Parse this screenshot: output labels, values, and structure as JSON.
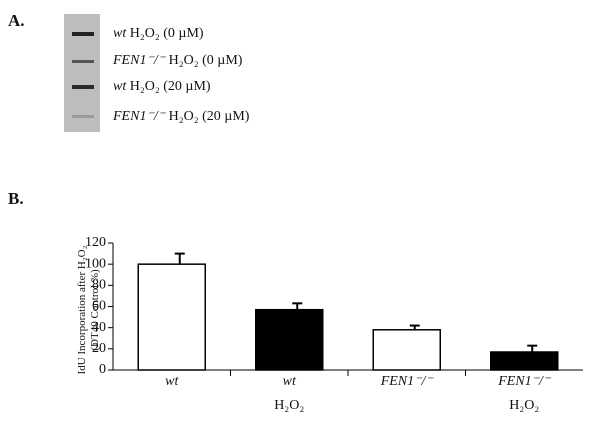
{
  "panel_a": {
    "label": "A.",
    "lanes": [
      {
        "genotype": "wt",
        "treatment": "H₂O₂ (0 µM)"
      },
      {
        "genotype": "FEN1⁻/⁻",
        "treatment": "H₂O₂ (0 µM)"
      },
      {
        "genotype": "wt",
        "treatment": "H₂O₂ (20 µM)"
      },
      {
        "genotype": "FEN1⁻/⁻",
        "treatment": "H₂O₂ (20 µM)"
      }
    ]
  },
  "chart_data": {
    "type": "bar",
    "label": "B.",
    "ylabel": [
      "IdU Incorporation after H₂O₂",
      "(DT40 Control %)"
    ],
    "categories": [
      [
        "wt"
      ],
      [
        "wt",
        "H₂O₂"
      ],
      [
        "FEN1⁻/⁻"
      ],
      [
        "FEN1⁻/⁻",
        "H₂O₂"
      ]
    ],
    "values": [
      100,
      57,
      38,
      17
    ],
    "errors": [
      10,
      6,
      4,
      6
    ],
    "colors": [
      "#ffffff",
      "#000000",
      "#ffffff",
      "#000000"
    ],
    "ylim": [
      0,
      120
    ],
    "yticks": [
      0,
      20,
      40,
      60,
      80,
      100,
      120
    ]
  }
}
